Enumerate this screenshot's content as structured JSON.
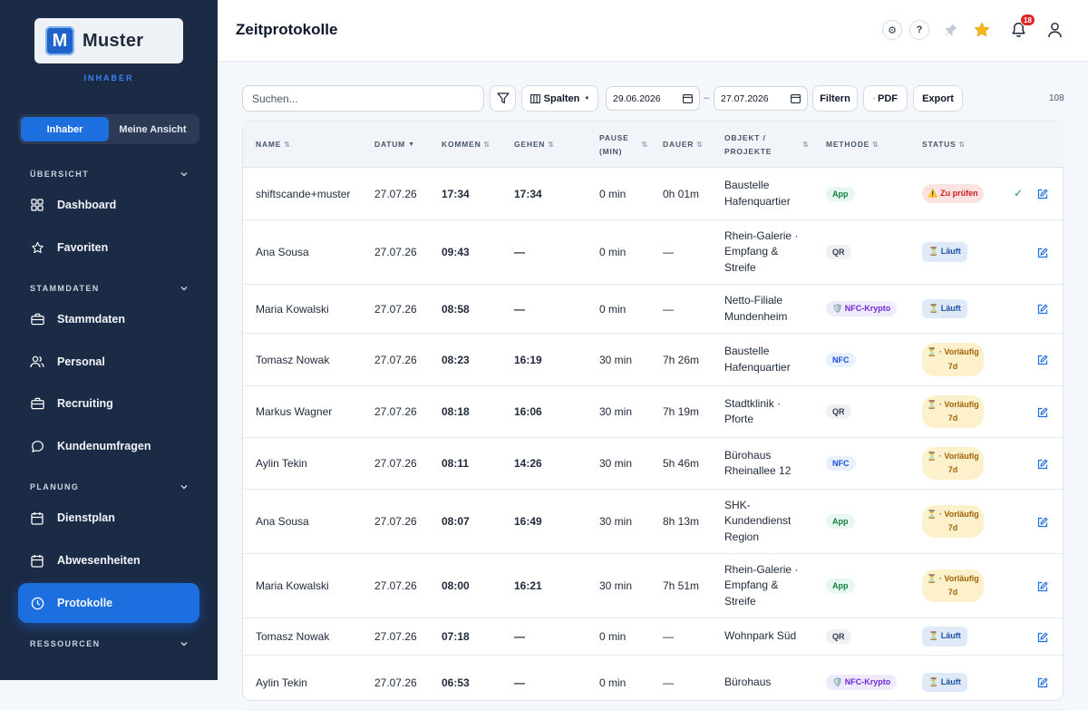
{
  "sidebar": {
    "logo_letter": "M",
    "logo_text": "Muster",
    "role_caption": "INHABER",
    "toggle": [
      "Inhaber",
      "Meine Ansicht"
    ],
    "sections": {
      "overview": "ÜBERSICHT",
      "master": "STAMMDATEN",
      "planning": "PLANUNG",
      "resources": "RESSOURCEN"
    },
    "items": [
      {
        "label": "Dashboard",
        "icon": "grid-icon"
      },
      {
        "label": "Favoriten",
        "icon": "star-icon"
      },
      {
        "label": "Stammdaten",
        "icon": "briefcase-icon"
      },
      {
        "label": "Personal",
        "icon": "users-icon"
      },
      {
        "label": "Recruiting",
        "icon": "briefcase-icon"
      },
      {
        "label": "Kundenumfragen",
        "icon": "chat-icon"
      },
      {
        "label": "Dienstplan",
        "icon": "calendar-icon"
      },
      {
        "label": "Abwesenheiten",
        "icon": "calendar-icon"
      },
      {
        "label": "Protokolle",
        "icon": "clock-icon"
      }
    ],
    "active_item": "Protokolle"
  },
  "header": {
    "title": "Zeitprotokolle",
    "settings_glyph": "⚙",
    "help_glyph": "?",
    "notification_count": "18"
  },
  "toolbar": {
    "search_placeholder": "Suchen...",
    "columns_label": "Spalten",
    "date_from": "29.06.2026",
    "date_to": "27.07.2026",
    "date_separator": "–",
    "filter_label": "Filtern",
    "pdf_label": "PDF",
    "export_label": "Export",
    "count": "108"
  },
  "table": {
    "headers": {
      "name": "NAME",
      "date": "DATUM",
      "in": "KOMMEN",
      "out": "GEHEN",
      "pause_1": "PAUSE",
      "pause_2": "(MIN)",
      "duration": "DAUER",
      "object_1": "OBJEKT /",
      "object_2": "PROJEKTE",
      "method": "METHODE",
      "status": "STATUS"
    },
    "rows": [
      {
        "name": "shiftscande+muster",
        "date": "27.07.26",
        "in": "17:34",
        "out": "17:34",
        "pause": "0 min",
        "duration": "0h 01m",
        "object": [
          "Baustelle",
          "Hafenquartier"
        ],
        "method": "App",
        "status": "⚠️ Zu prüfen",
        "status_type": "review"
      },
      {
        "name": "Ana Sousa",
        "date": "27.07.26",
        "in": "09:43",
        "out": "—",
        "pause": "0 min",
        "duration": "—",
        "object": [
          "Rhein-Galerie ·",
          "Empfang &",
          "Streife"
        ],
        "method": "QR",
        "status": "⏳ Läuft",
        "status_type": "running"
      },
      {
        "name": "Maria Kowalski",
        "date": "27.07.26",
        "in": "08:58",
        "out": "—",
        "pause": "0 min",
        "duration": "—",
        "object": [
          "Netto-Filiale",
          "Mundenheim"
        ],
        "method": "🛡️ NFC-Krypto",
        "status": "⏳ Läuft",
        "status_type": "running"
      },
      {
        "name": "Tomasz Nowak",
        "date": "27.07.26",
        "in": "08:23",
        "out": "16:19",
        "pause": "30 min",
        "duration": "7h 26m",
        "object": [
          "Baustelle",
          "Hafenquartier"
        ],
        "method": "NFC",
        "status": "⏳ · Vorläufig 7d",
        "status_type": "provisional"
      },
      {
        "name": "Markus Wagner",
        "date": "27.07.26",
        "in": "08:18",
        "out": "16:06",
        "pause": "30 min",
        "duration": "7h 19m",
        "object": [
          "Stadtklinik ·",
          "Pforte"
        ],
        "method": "QR",
        "status": "⏳ · Vorläufig 7d",
        "status_type": "provisional"
      },
      {
        "name": "Aylin Tekin",
        "date": "27.07.26",
        "in": "08:11",
        "out": "14:26",
        "pause": "30 min",
        "duration": "5h 46m",
        "object": [
          "Bürohaus",
          "Rheinallee 12"
        ],
        "method": "NFC",
        "status": "⏳ · Vorläufig 7d",
        "status_type": "provisional"
      },
      {
        "name": "Ana Sousa",
        "date": "27.07.26",
        "in": "08:07",
        "out": "16:49",
        "pause": "30 min",
        "duration": "8h 13m",
        "object": [
          "SHK-",
          "Kundendienst",
          "Region"
        ],
        "method": "App",
        "status": "⏳ · Vorläufig 7d",
        "status_type": "provisional"
      },
      {
        "name": "Maria Kowalski",
        "date": "27.07.26",
        "in": "08:00",
        "out": "16:21",
        "pause": "30 min",
        "duration": "7h 51m",
        "object": [
          "Rhein-Galerie ·",
          "Empfang &",
          "Streife"
        ],
        "method": "App",
        "status": "⏳ · Vorläufig 7d",
        "status_type": "provisional"
      },
      {
        "name": "Tomasz Nowak",
        "date": "27.07.26",
        "in": "07:18",
        "out": "—",
        "pause": "0 min",
        "duration": "—",
        "object": [
          "Wohnpark Süd"
        ],
        "method": "QR",
        "status": "⏳ Läuft",
        "status_type": "running"
      },
      {
        "name": "Aylin Tekin",
        "date": "27.07.26",
        "in": "06:53",
        "out": "—",
        "pause": "0 min",
        "duration": "—",
        "object": [
          "Bürohaus"
        ],
        "method": "🛡️ NFC-Krypto",
        "status": "⏳ Läuft",
        "status_type": "running"
      }
    ]
  },
  "colors": {
    "sidebar_bg": "#1b2a45",
    "accent": "#1d6fe0",
    "page_bg": "#f4f7fb",
    "notification_badge": "#dc2626",
    "star": "#f5b81c"
  }
}
